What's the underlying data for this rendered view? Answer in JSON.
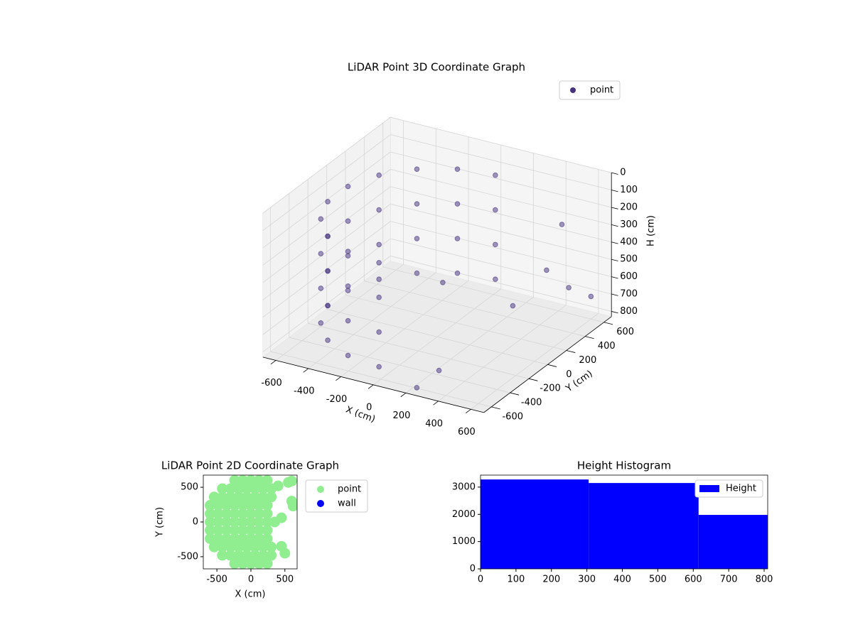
{
  "chart_data": [
    {
      "type": "scatter3d",
      "title": "LiDAR Point 3D Coordinate Graph",
      "xlabel": "X (cm)",
      "ylabel": "Y (cm)",
      "zlabel": "H (cm)",
      "xlim": [
        -680,
        680
      ],
      "ylim": [
        -680,
        680
      ],
      "zlim": [
        0,
        830
      ],
      "z_inverted": true,
      "xticks": [
        -600,
        -400,
        -200,
        0,
        200,
        400,
        600
      ],
      "yticks": [
        -600,
        -400,
        -200,
        0,
        200,
        400,
        600
      ],
      "zticks": [
        0,
        100,
        200,
        300,
        400,
        500,
        600,
        700,
        800
      ],
      "grid": true,
      "legend": "upper right",
      "series": [
        {
          "name": "point",
          "color": "#46327e",
          "x": [
            0,
            -212,
            -399,
            -537,
            -611,
            -611,
            -537,
            -399,
            -212,
            0,
            0,
            -212,
            -399,
            -537,
            -611,
            -611,
            -537,
            -399,
            -212,
            0,
            0,
            -212,
            -399,
            -537,
            -611,
            -611,
            -537,
            -399,
            -212,
            0,
            0,
            -212,
            -399,
            -537,
            -611,
            -611,
            -537,
            -399,
            -212,
            0,
            450,
            500,
            550,
            600,
            300,
            250,
            350,
            150
          ],
          "y": [
            620,
            583,
            475,
            310,
            108,
            -108,
            -310,
            -475,
            -583,
            -620,
            620,
            583,
            475,
            310,
            108,
            -108,
            -310,
            -475,
            -583,
            -620,
            620,
            583,
            475,
            310,
            108,
            -108,
            -310,
            -475,
            -583,
            -620,
            620,
            583,
            475,
            310,
            108,
            -108,
            -310,
            -475,
            -583,
            -620,
            550,
            300,
            450,
            600,
            -500,
            -650,
            200,
            -200
          ],
          "z": [
            150,
            150,
            150,
            150,
            150,
            150,
            150,
            150,
            150,
            150,
            350,
            350,
            350,
            350,
            350,
            350,
            350,
            350,
            350,
            350,
            550,
            550,
            550,
            550,
            550,
            550,
            550,
            550,
            550,
            550,
            750,
            750,
            750,
            750,
            750,
            750,
            750,
            750,
            750,
            750,
            300,
            450,
            600,
            700,
            750,
            800,
            650,
            400
          ]
        }
      ]
    },
    {
      "type": "scatter",
      "title": "LiDAR Point 2D Coordinate Graph",
      "xlabel": "X (cm)",
      "ylabel": "Y (cm)",
      "xlim": [
        -700,
        680
      ],
      "ylim": [
        -675,
        675
      ],
      "xticks": [
        -500,
        0,
        500
      ],
      "yticks": [
        -500,
        0,
        500
      ],
      "legend": "outside right",
      "series": [
        {
          "name": "point",
          "color": "#90ee90",
          "x": [
            -240,
            -120,
            0,
            120,
            240,
            -420,
            -300,
            -180,
            -60,
            60,
            180,
            300,
            -540,
            -420,
            -300,
            -180,
            -60,
            60,
            180,
            300,
            -600,
            -480,
            -360,
            -240,
            -120,
            0,
            120,
            240,
            -600,
            -480,
            -360,
            -240,
            -120,
            0,
            120,
            240,
            -600,
            -480,
            -360,
            -240,
            -120,
            0,
            120,
            240,
            -600,
            -480,
            -360,
            -240,
            -120,
            0,
            120,
            240,
            -600,
            -480,
            -360,
            -240,
            -120,
            0,
            120,
            240,
            -540,
            -420,
            -300,
            -180,
            -60,
            60,
            180,
            300,
            -420,
            -300,
            -180,
            -60,
            60,
            180,
            300,
            -240,
            -120,
            0,
            120,
            240,
            350,
            450,
            450,
            500,
            600,
            620,
            550,
            600,
            400
          ],
          "y": [
            -600,
            -600,
            -600,
            -600,
            -600,
            -480,
            -480,
            -480,
            -480,
            -480,
            -480,
            -480,
            -360,
            -360,
            -360,
            -360,
            -360,
            -360,
            -360,
            -360,
            -240,
            -240,
            -240,
            -240,
            -240,
            -240,
            -240,
            -240,
            -120,
            -120,
            -120,
            -120,
            -120,
            -120,
            -120,
            -120,
            0,
            0,
            0,
            0,
            0,
            0,
            0,
            0,
            120,
            120,
            120,
            120,
            120,
            120,
            120,
            120,
            240,
            240,
            240,
            240,
            240,
            240,
            240,
            240,
            360,
            360,
            360,
            360,
            360,
            360,
            360,
            360,
            480,
            480,
            480,
            480,
            480,
            480,
            480,
            600,
            600,
            600,
            600,
            600,
            0,
            60,
            -350,
            -450,
            300,
            230,
            570,
            590,
            520
          ]
        },
        {
          "name": "wall",
          "color": "#0000ff",
          "x": [],
          "y": []
        }
      ]
    },
    {
      "type": "hist",
      "title": "Height Histogram",
      "bins": [
        0,
        305,
        615,
        810
      ],
      "counts": [
        3280,
        3150,
        1980
      ],
      "series_name": "Height",
      "color": "#0000ff",
      "xlim": [
        0,
        810
      ],
      "ylim": [
        0,
        3440
      ],
      "xticks": [
        0,
        100,
        200,
        300,
        400,
        500,
        600,
        700,
        800
      ],
      "yticks": [
        0,
        1000,
        2000,
        3000
      ],
      "legend": "upper right"
    }
  ]
}
